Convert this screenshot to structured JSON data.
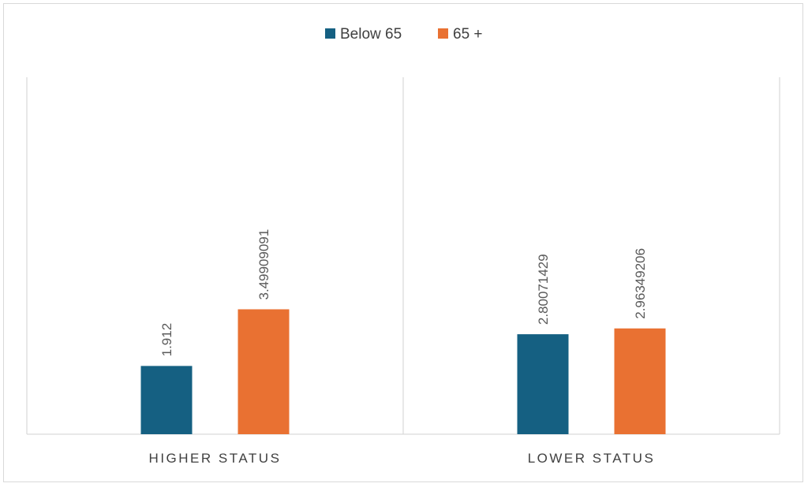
{
  "chart_data": {
    "type": "bar",
    "categories": [
      "HIGHER STATUS",
      "LOWER STATUS"
    ],
    "series": [
      {
        "name": "Below 65",
        "color": "#156082",
        "values": [
          1.912,
          2.80071429
        ],
        "labels": [
          "1.912",
          "2.80071429"
        ]
      },
      {
        "name": "65 +",
        "color": "#E97132",
        "values": [
          3.49909091,
          2.96349206
        ],
        "labels": [
          "3.49909091",
          "2.96349206"
        ]
      }
    ],
    "title": "",
    "xlabel": "",
    "ylabel": "",
    "ylim": [
      0,
      10
    ],
    "legend": "top-center",
    "grid": false,
    "category_separators": true
  }
}
